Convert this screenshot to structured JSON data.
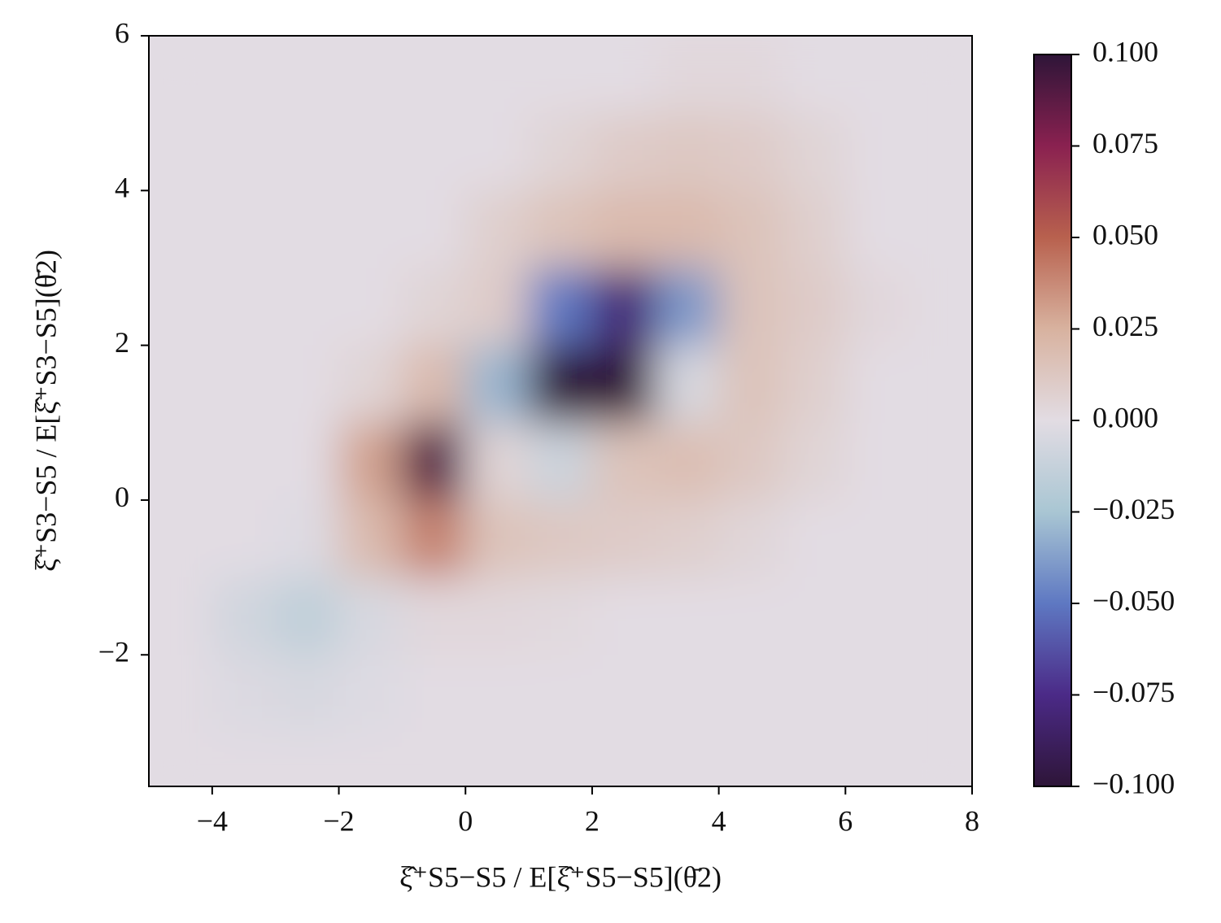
{
  "chart_data": {
    "type": "heatmap",
    "xlabel": "ξ̂⁺S5−S5 / E[ξ̂⁺S5−S5](θ̄2)",
    "ylabel": "ξ̂⁺S3−S5 / E[ξ̂⁺S3−S5](θ̄2)",
    "x": [
      -4.5,
      -3.5,
      -2.5,
      -1.5,
      -0.5,
      0.5,
      1.5,
      2.5,
      3.5,
      4.5,
      5.5,
      6.5,
      7.5
    ],
    "y": [
      5.5,
      4.5,
      3.5,
      2.5,
      1.5,
      0.5,
      -0.5,
      -1.5,
      -2.5,
      -3.5
    ],
    "z": [
      [
        0,
        0,
        0,
        0,
        0,
        0,
        0,
        0,
        0.003,
        0.003,
        0,
        0,
        0
      ],
      [
        0,
        0,
        0,
        0,
        0,
        0,
        0.005,
        0.01,
        0.012,
        0.01,
        0.005,
        0,
        0
      ],
      [
        0,
        0,
        0,
        0,
        0,
        0.008,
        0.015,
        0.02,
        0.02,
        0.015,
        0.008,
        0,
        0
      ],
      [
        0,
        0,
        0,
        0,
        0.005,
        0.01,
        -0.05,
        -0.08,
        -0.04,
        0.015,
        0.01,
        0.003,
        0
      ],
      [
        0,
        0,
        0,
        0.005,
        0.02,
        -0.03,
        -0.1,
        -0.1,
        -0.005,
        0.015,
        0.008,
        0,
        0
      ],
      [
        0,
        0,
        0,
        0.03,
        0.09,
        0.005,
        -0.01,
        0.015,
        0.018,
        0.012,
        0.005,
        0,
        0
      ],
      [
        0,
        0,
        -0.002,
        0.02,
        0.04,
        0.015,
        0.012,
        0.01,
        0.008,
        0.004,
        0,
        0,
        0
      ],
      [
        0,
        -0.008,
        -0.015,
        -0.005,
        0.003,
        0.003,
        0.002,
        0,
        0,
        0,
        0,
        0,
        0
      ],
      [
        0,
        -0.003,
        -0.005,
        -0.002,
        0,
        0,
        0,
        0,
        0,
        0,
        0,
        0,
        0
      ],
      [
        0,
        0,
        0,
        0,
        0,
        0,
        0,
        0,
        0,
        0,
        0,
        0,
        0
      ]
    ],
    "xlim": [
      -5,
      8
    ],
    "ylim": [
      -3.7,
      6
    ],
    "xticks": [
      {
        "value": -4,
        "label": "−4"
      },
      {
        "value": -2,
        "label": "−2"
      },
      0,
      2,
      4,
      6,
      8
    ],
    "yticks": [
      {
        "value": -2,
        "label": "−2"
      },
      0,
      2,
      4,
      6
    ],
    "zlim": [
      -0.1,
      0.1
    ],
    "colormap": [
      "#2e1538",
      "#4b2a87",
      "#5e78c2",
      "#a9c6d3",
      "#e2dce3",
      "#d8b29f",
      "#b8614e",
      "#8a2150",
      "#2e1538"
    ],
    "colorbar": {
      "ticks": [
        {
          "value": 0.1,
          "label": "0.100"
        },
        {
          "value": 0.075,
          "label": "0.075"
        },
        {
          "value": 0.05,
          "label": "0.050"
        },
        {
          "value": 0.025,
          "label": "0.025"
        },
        {
          "value": 0,
          "label": "0.000"
        },
        {
          "value": -0.025,
          "label": "−0.025"
        },
        {
          "value": -0.05,
          "label": "−0.050"
        },
        {
          "value": -0.075,
          "label": "−0.075"
        },
        {
          "value": -0.1,
          "label": "−0.100"
        }
      ]
    }
  }
}
